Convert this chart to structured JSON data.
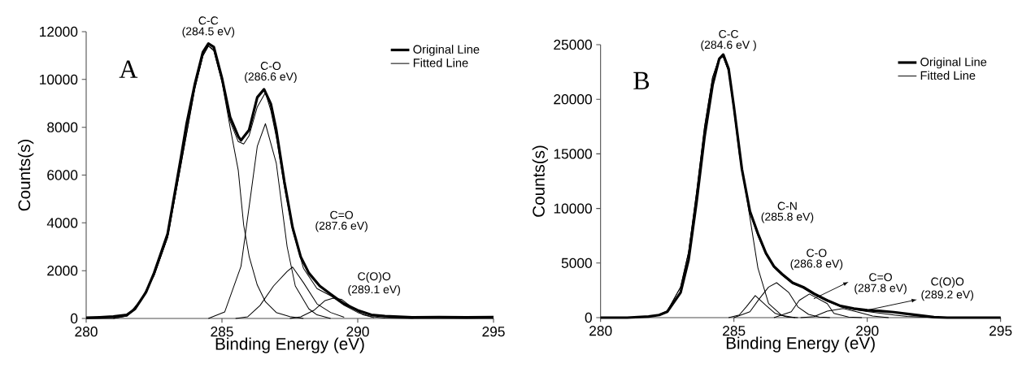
{
  "chart_data": [
    {
      "type": "line",
      "xlabel": "Binding Energy (eV)",
      "ylabel": "Counts(s)",
      "xlim": [
        280,
        295
      ],
      "xticks": [
        280,
        285,
        290,
        295
      ],
      "ylim": [
        0,
        12000
      ],
      "yticks": [
        0,
        2000,
        4000,
        6000,
        8000,
        10000,
        12000
      ],
      "legend": "top right",
      "marker": "none",
      "line_style": "solid",
      "series": [
        {
          "name": "Original Line",
          "color": "#000000",
          "x": [
            280,
            280.5,
            281,
            281.5,
            281.8,
            282.2,
            282.5,
            283,
            283.5,
            283.7,
            284,
            284.3,
            284.5,
            284.7,
            285,
            285.3,
            285.6,
            285.7,
            286,
            286.3,
            286.55,
            286.8,
            287,
            287.3,
            287.6,
            287.9,
            288.2,
            288.6,
            289,
            289.5,
            290,
            290.5,
            291,
            292,
            293,
            294,
            295
          ],
          "values": [
            30,
            50,
            80,
            150,
            400,
            1090,
            1900,
            3540,
            6800,
            8160,
            9800,
            11150,
            11500,
            11360,
            10060,
            8430,
            7620,
            7450,
            7890,
            9250,
            9590,
            8980,
            7890,
            5710,
            3810,
            2580,
            1900,
            1360,
            1020,
            610,
            340,
            150,
            100,
            50,
            60,
            50,
            60
          ]
        },
        {
          "name": "Fitted Line",
          "color": "#000000",
          "x": [
            280,
            281,
            281.5,
            282,
            282.5,
            283,
            283.5,
            284,
            284.3,
            284.5,
            284.7,
            285,
            285.3,
            285.6,
            285.8,
            286,
            286.3,
            286.6,
            286.8,
            287,
            287.3,
            287.6,
            288,
            288.5,
            289,
            289.5,
            290,
            290.5,
            291,
            292,
            295
          ],
          "values": [
            0,
            0,
            100,
            750,
            1800,
            3400,
            6500,
            9650,
            11000,
            11400,
            11250,
            9950,
            8250,
            7400,
            7300,
            7650,
            8850,
            9450,
            8700,
            7600,
            5500,
            3700,
            2100,
            1250,
            950,
            550,
            250,
            80,
            20,
            0,
            0
          ]
        },
        {
          "color": "#000000",
          "x": [
            281,
            281.5,
            282,
            282.5,
            283,
            283.5,
            284,
            284.3,
            284.5,
            284.7,
            285,
            285.3,
            285.6,
            285.8,
            286,
            286.3,
            286.6,
            287,
            287.5,
            288
          ],
          "values": [
            0,
            100,
            700,
            1800,
            3400,
            6500,
            9600,
            11000,
            11400,
            11200,
            9900,
            8000,
            6200,
            3900,
            2600,
            1400,
            700,
            250,
            80,
            0
          ]
        },
        {
          "color": "#000000",
          "x": [
            284.5,
            285.1,
            285.7,
            286.06,
            286.3,
            286.6,
            287,
            287.4,
            287.7,
            288.2,
            288.5,
            289
          ],
          "values": [
            0,
            270,
            2180,
            5170,
            7200,
            8150,
            6500,
            3000,
            1360,
            400,
            150,
            0
          ]
        },
        {
          "color": "#000000",
          "x": [
            285.5,
            285.95,
            286.4,
            286.9,
            287.4,
            287.6,
            288,
            288.5,
            289,
            289.5
          ],
          "values": [
            0,
            70,
            540,
            1360,
            1970,
            2150,
            1500,
            610,
            250,
            50
          ]
        },
        {
          "color": "#000000",
          "x": [
            287.5,
            287.9,
            288.4,
            288.8,
            289.1,
            289.4,
            289.8,
            290.2,
            290.6
          ],
          "values": [
            0,
            70,
            350,
            750,
            850,
            800,
            450,
            150,
            30
          ]
        }
      ],
      "annotations": [
        "A",
        "C-C",
        "(284.5 eV)",
        "C-O",
        "(286.6 eV)",
        "C=O",
        "(287.6 eV)",
        "C(O)O",
        "(289.1 eV)"
      ]
    },
    {
      "type": "line",
      "xlabel": "Binding Energy (eV)",
      "ylabel": "Counts(s)",
      "xlim": [
        280,
        295
      ],
      "xticks": [
        280,
        285,
        290,
        295
      ],
      "ylim": [
        0,
        25000
      ],
      "yticks": [
        0,
        5000,
        10000,
        15000,
        20000,
        25000
      ],
      "legend": "top right",
      "marker": "none",
      "line_style": "solid",
      "series": [
        {
          "name": "Original Line",
          "color": "#000000",
          "x": [
            280,
            281,
            281.8,
            282.2,
            282.5,
            283,
            283.3,
            283.6,
            283.9,
            284.2,
            284.45,
            284.6,
            284.8,
            285,
            285.3,
            285.6,
            285.9,
            286.2,
            286.5,
            286.8,
            287.2,
            287.6,
            288,
            288.5,
            289,
            289.5,
            290,
            290.5,
            291,
            291.5,
            292,
            292.5,
            293,
            294,
            295
          ],
          "values": [
            0,
            0,
            100,
            240,
            540,
            2300,
            5300,
            10600,
            16600,
            21300,
            23700,
            24100,
            22800,
            19300,
            13600,
            9750,
            7700,
            5900,
            4700,
            4000,
            3200,
            2800,
            2200,
            1580,
            1070,
            830,
            680,
            600,
            500,
            350,
            200,
            50,
            0,
            0,
            0
          ]
        },
        {
          "name": "Fitted Line",
          "color": "#000000",
          "x": [
            280,
            281,
            281.8,
            282.2,
            282.5,
            283,
            283.3,
            283.6,
            283.9,
            284.2,
            284.45,
            284.6,
            284.8,
            285,
            285.3,
            285.6,
            285.9,
            286.2,
            286.5,
            286.8,
            287.2,
            287.6,
            288,
            288.5,
            289,
            289.5,
            290,
            290.5,
            291,
            291.5,
            292,
            293,
            295
          ],
          "values": [
            0,
            0,
            100,
            250,
            600,
            2800,
            6000,
            11500,
            17500,
            22000,
            23800,
            23900,
            22600,
            19000,
            13400,
            9600,
            7500,
            5800,
            4600,
            3900,
            3100,
            2700,
            2100,
            1500,
            1000,
            750,
            550,
            400,
            250,
            120,
            50,
            0,
            0
          ]
        },
        {
          "color": "#000000",
          "x": [
            282,
            282.5,
            283,
            283.3,
            283.6,
            283.9,
            284.2,
            284.45,
            284.6,
            284.8,
            285,
            285.2,
            285.5,
            285.9,
            286.3,
            286.8,
            287.3
          ],
          "values": [
            100,
            600,
            2800,
            6000,
            11500,
            17500,
            22000,
            23800,
            23900,
            22600,
            19000,
            15000,
            10700,
            4550,
            1300,
            200,
            0
          ]
        },
        {
          "color": "#000000",
          "x": [
            284.8,
            285.2,
            285.46,
            285.8,
            286.2,
            286.55,
            287,
            287.4
          ],
          "values": [
            0,
            240,
            980,
            2020,
            1130,
            390,
            50,
            0
          ]
        },
        {
          "color": "#000000",
          "x": [
            285,
            285.6,
            285.95,
            286.3,
            286.6,
            287.05,
            287.4,
            287.8,
            288.2,
            288.6
          ],
          "values": [
            0,
            540,
            1720,
            2800,
            3200,
            2320,
            980,
            300,
            50,
            0
          ]
        },
        {
          "color": "#000000",
          "x": [
            286.5,
            287.15,
            287.45,
            287.83,
            288.5,
            288.75,
            289.3,
            289.8
          ],
          "values": [
            0,
            540,
            1580,
            2170,
            1280,
            390,
            50,
            0
          ]
        },
        {
          "color": "#000000",
          "x": [
            287.5,
            288,
            288.5,
            289.1,
            289.6,
            290.2,
            290.8
          ],
          "values": [
            0,
            90,
            600,
            830,
            540,
            150,
            0
          ]
        }
      ],
      "annotations": [
        "B",
        "C-C",
        "(284.6 eV )",
        "C-N",
        "(285.8 eV)",
        "C-O",
        "(286.8 eV)",
        "C=O",
        "(287.8 eV)",
        "C(O)O",
        "(289.2 eV)"
      ]
    }
  ]
}
